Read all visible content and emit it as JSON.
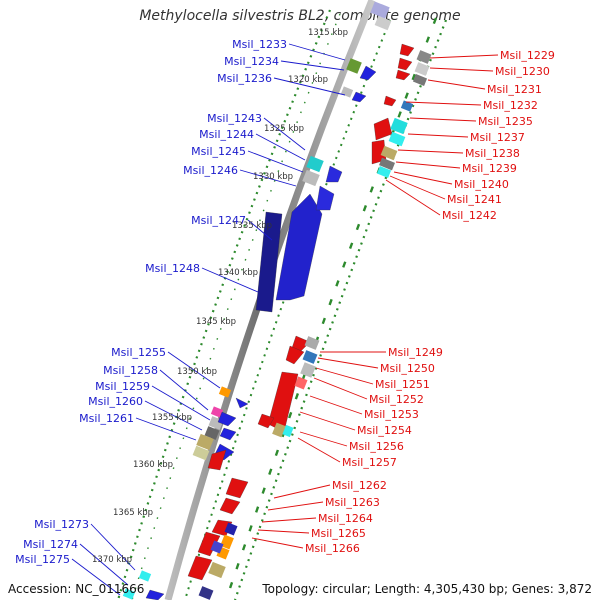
{
  "title": "Methylocella silvestris BL2, complete genome",
  "footer": {
    "accession": "Accession: NC_011666",
    "topology": "Topology: circular; Length: 4,305,430 bp; Genes: 3,872"
  },
  "colors": {
    "left_labels": "#1a1acc",
    "right_labels": "#e01010",
    "tick": "#2a8a2a"
  },
  "kbp_labels": [
    "1315 kbp",
    "1320 kbp",
    "1325 kbp",
    "1330 kbp",
    "1335 kbp",
    "1340 kbp",
    "1345 kbp",
    "1350 kbp",
    "1355 kbp",
    "1360 kbp",
    "1365 kbp",
    "1370 kbp"
  ],
  "left_genes": [
    "Msil_1233",
    "Msil_1234",
    "Msil_1236",
    "Msil_1243",
    "Msil_1244",
    "Msil_1245",
    "Msil_1246",
    "Msil_1247",
    "Msil_1248",
    "Msil_1255",
    "Msil_1258",
    "Msil_1259",
    "Msil_1260",
    "Msil_1261",
    "Msil_1273",
    "Msil_1274",
    "Msil_1275"
  ],
  "right_genes": [
    "Msil_1229",
    "Msil_1230",
    "Msil_1231",
    "Msil_1232",
    "Msil_1235",
    "Msil_1237",
    "Msil_1238",
    "Msil_1239",
    "Msil_1240",
    "Msil_1241",
    "Msil_1242",
    "Msil_1249",
    "Msil_1250",
    "Msil_1251",
    "Msil_1252",
    "Msil_1253",
    "Msil_1254",
    "Msil_1256",
    "Msil_1257",
    "Msil_1262",
    "Msil_1263",
    "Msil_1264",
    "Msil_1265",
    "Msil_1266"
  ]
}
